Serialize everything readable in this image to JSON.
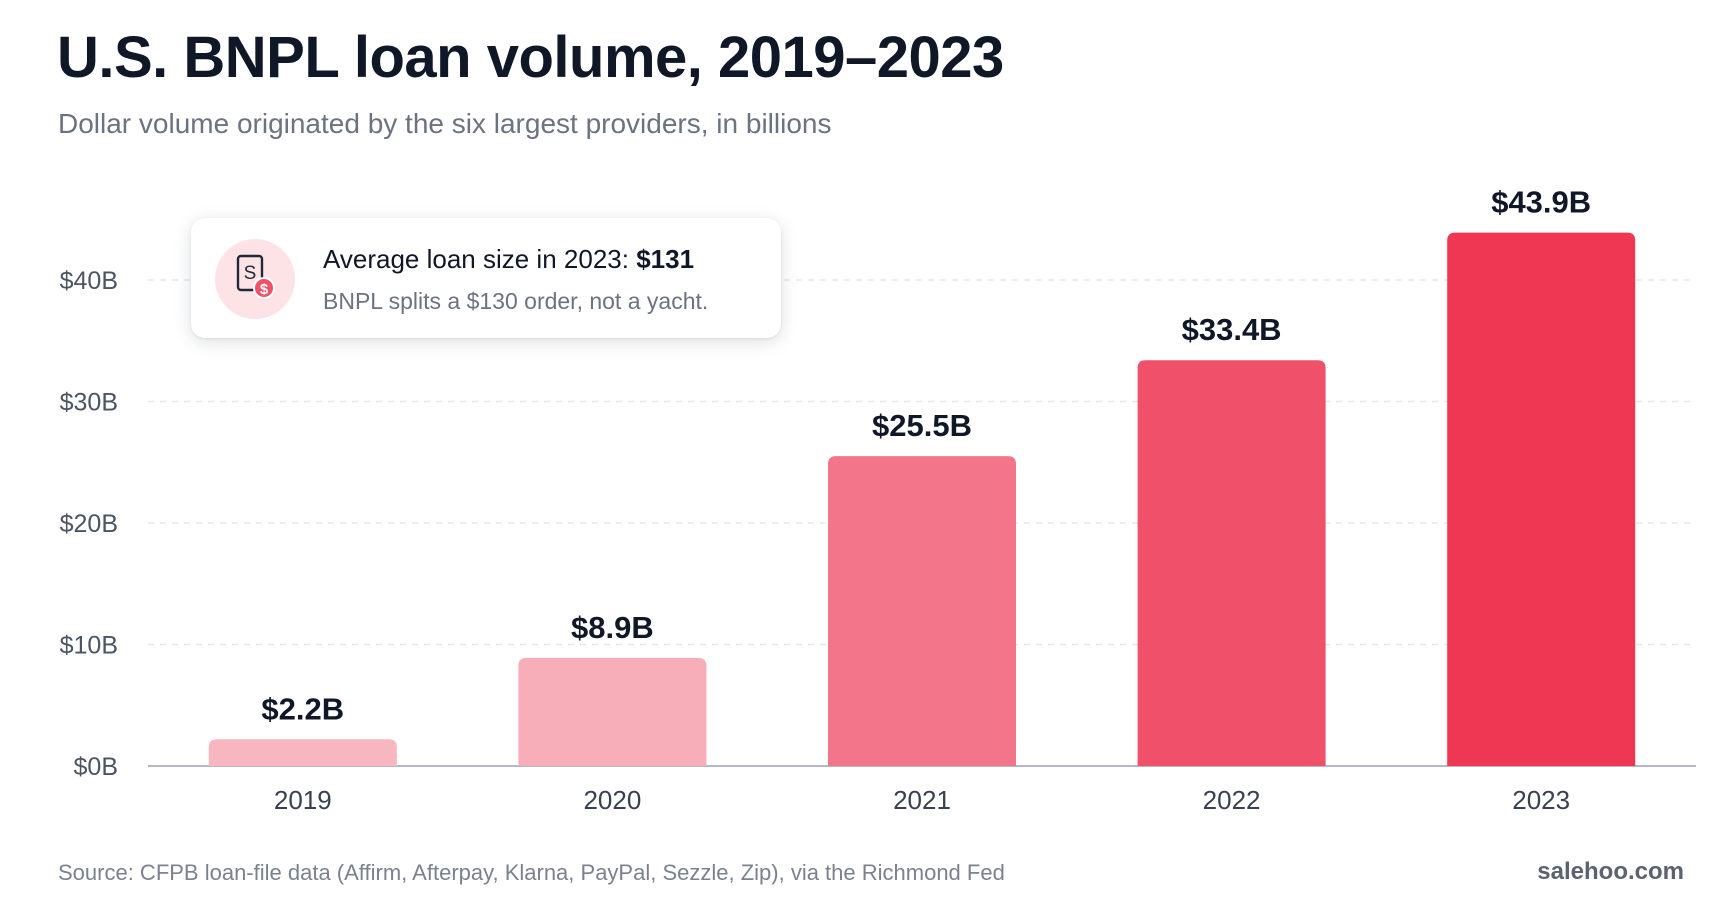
{
  "header": {
    "title": "U.S. BNPL loan volume, 2019–2023",
    "subtitle": "Dollar volume originated by the six largest providers, in billions"
  },
  "callout": {
    "icon": "receipt-dollar-icon",
    "line1_prefix": "Average loan size in 2023: ",
    "line1_value": "$131",
    "line2": "BNPL splits a $130 order, not a yacht."
  },
  "chart_data": {
    "type": "bar",
    "categories": [
      "2019",
      "2020",
      "2021",
      "2022",
      "2023"
    ],
    "values": [
      2.2,
      8.9,
      25.5,
      33.4,
      43.9
    ],
    "value_labels": [
      "$2.2B",
      "$8.9B",
      "$25.5B",
      "$33.4B",
      "$43.9B"
    ],
    "title": "U.S. BNPL loan volume, 2019–2023",
    "subtitle": "Dollar volume originated by the six largest providers, in billions",
    "xlabel": "",
    "ylabel": "",
    "ylim": [
      0,
      40
    ],
    "yticks": [
      0,
      10,
      20,
      30,
      40
    ],
    "ytick_labels": [
      "$0B",
      "$10B",
      "$20B",
      "$30B",
      "$40B"
    ],
    "grid": true,
    "legend": "none",
    "bar_colors": [
      "#f7b6c0",
      "#f8aeb9",
      "#f37589",
      "#f1506b",
      "#ef3652"
    ]
  },
  "footer": {
    "source": "Source: CFPB loan-file data (Affirm, Afterpay, Klarna, PayPal, Sezzle, Zip), via the Richmond Fed",
    "brand": "salehoo.com"
  }
}
